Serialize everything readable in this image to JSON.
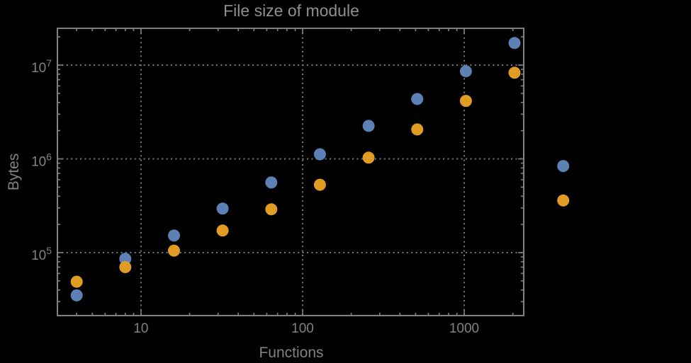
{
  "chart_data": {
    "type": "scatter",
    "title": "File size of module",
    "xlabel": "Functions",
    "ylabel": "Bytes",
    "x_scale": "log",
    "y_scale": "log",
    "xlim": [
      3.04,
      2335
    ],
    "ylim": [
      21300,
      24700000
    ],
    "grid": "dotted gray gridlines at decade majors on both axes",
    "legend": "none",
    "x": [
      4,
      8,
      16,
      32,
      64,
      128,
      256,
      512,
      1024,
      2048,
      4096
    ],
    "series": [
      {
        "name": "blue",
        "color": "#5e81b5",
        "values": [
          35000,
          86000,
          152000,
          295000,
          560000,
          1120000,
          2250000,
          4350000,
          8600000,
          17200000,
          840000
        ]
      },
      {
        "name": "orange",
        "color": "#e19c24",
        "values": [
          49000,
          70000,
          105000,
          172000,
          290000,
          530000,
          1030000,
          2060000,
          4150000,
          8300000,
          360000
        ]
      }
    ],
    "x_ticks": [
      {
        "value": 10,
        "label": "10"
      },
      {
        "value": 100,
        "label": "100"
      },
      {
        "value": 1000,
        "label": "1000"
      }
    ],
    "y_ticks": [
      {
        "value": 100000,
        "base": "10",
        "exp": "5"
      },
      {
        "value": 1000000,
        "base": "10",
        "exp": "6"
      },
      {
        "value": 10000000,
        "base": "10",
        "exp": "7"
      }
    ]
  },
  "colors": {
    "background": "#000000",
    "frame": "#828282",
    "grid": "#7a7a7a",
    "text": "#828282",
    "title": "#8f8f8f"
  }
}
